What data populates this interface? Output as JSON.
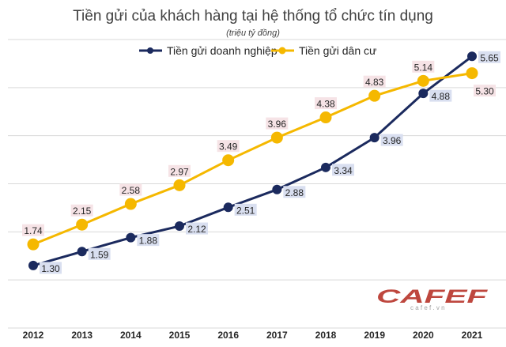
{
  "chart_data": {
    "type": "line",
    "title": "Tiền gửi của khách hàng tại hệ thống tổ chức tín dụng",
    "subtitle": "(triệu tỷ đồng)",
    "categories": [
      "2012",
      "2013",
      "2014",
      "2015",
      "2016",
      "2017",
      "2018",
      "2019",
      "2020",
      "2021"
    ],
    "series": [
      {
        "name": "Tiền gửi doanh nghiệp",
        "color": "#1b2a5e",
        "label_bg": "#d9dff0",
        "values": [
          1.3,
          1.59,
          1.88,
          2.12,
          2.51,
          2.88,
          3.34,
          3.96,
          4.88,
          5.65
        ],
        "labels": [
          "1.30",
          "1.59",
          "1.88",
          "2.12",
          "2.51",
          "2.88",
          "3.34",
          "3.96",
          "4.88",
          "5.65"
        ]
      },
      {
        "name": "Tiền gửi dân cư",
        "color": "#f5b800",
        "label_bg": "#f6e3e6",
        "values": [
          1.74,
          2.15,
          2.58,
          2.97,
          3.49,
          3.96,
          4.38,
          4.83,
          5.14,
          5.3
        ],
        "labels": [
          "1.74",
          "2.15",
          "2.58",
          "2.97",
          "3.49",
          "3.96",
          "4.38",
          "4.83",
          "5.14",
          "5.30"
        ]
      }
    ],
    "ylim": [
      0,
      6
    ],
    "grid": true,
    "legend_position": "top"
  },
  "watermark": {
    "text": "CAFEF",
    "sub": "c a f e f . v n",
    "color": "#b8342a"
  }
}
